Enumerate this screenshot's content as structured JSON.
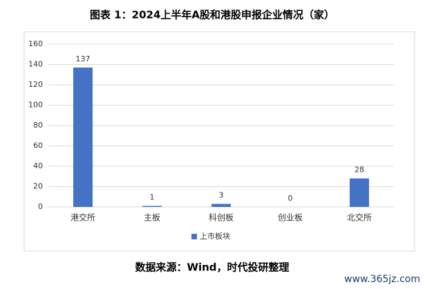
{
  "chart_data": {
    "type": "bar",
    "title": "图表 1：2024上半年A股和港股申报企业情况（家）",
    "categories": [
      "港交所",
      "主板",
      "科创板",
      "创业板",
      "北交所"
    ],
    "series": [
      {
        "name": "上市板块",
        "color": "#4472c4",
        "values": [
          137,
          1,
          3,
          0,
          28
        ]
      }
    ],
    "ylim": [
      0,
      160
    ],
    "yticks": [
      0,
      20,
      40,
      60,
      80,
      100,
      120,
      140,
      160
    ],
    "grid": true,
    "legend": "bottom",
    "source": "数据来源：Wind，时代投研整理",
    "watermark": "www.365jz.com"
  }
}
